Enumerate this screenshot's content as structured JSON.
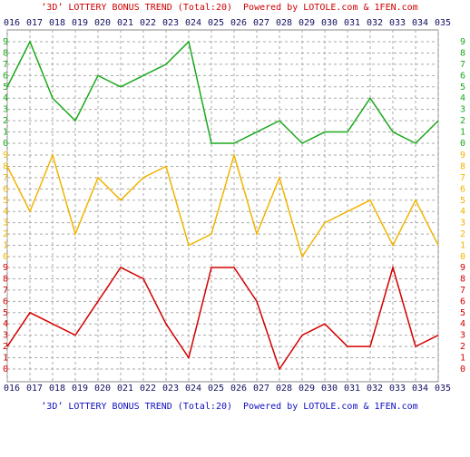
{
  "chart_data": [
    {
      "type": "line",
      "title": "’3D’ LOTTERY BONUS TREND (Total:20)  Powered by LOTOLE.com & 1FEN.com",
      "categories": [
        "016",
        "017",
        "018",
        "019",
        "020",
        "021",
        "022",
        "023",
        "024",
        "025",
        "026",
        "027",
        "028",
        "029",
        "030",
        "031",
        "032",
        "033",
        "034",
        "035"
      ],
      "series": [
        {
          "color": "#1aa81a",
          "values": [
            5,
            9,
            4,
            2,
            6,
            5,
            6,
            7,
            9,
            0,
            0,
            1,
            2,
            0,
            1,
            1,
            4,
            1,
            0,
            2
          ]
        }
      ],
      "ylim": [
        0,
        9
      ],
      "yticks": [
        0,
        1,
        2,
        3,
        4,
        5,
        6,
        7,
        8,
        9
      ],
      "grid": true
    },
    {
      "type": "line",
      "series": [
        {
          "color": "#f0b400",
          "values": [
            8,
            4,
            9,
            2,
            7,
            5,
            7,
            8,
            1,
            2,
            9,
            2,
            7,
            0,
            3,
            4,
            5,
            1,
            5,
            1
          ]
        }
      ],
      "ylim": [
        0,
        9
      ],
      "yticks": [
        0,
        1,
        2,
        3,
        4,
        5,
        6,
        7,
        8,
        9
      ],
      "grid": true
    },
    {
      "type": "line",
      "footer": "’3D’ LOTTERY BONUS TREND (Total:20)  Powered by LOTOLE.com & 1FEN.com",
      "series": [
        {
          "color": "#d40000",
          "values": [
            2,
            5,
            4,
            3,
            6,
            9,
            8,
            4,
            1,
            9,
            9,
            6,
            0,
            3,
            4,
            2,
            2,
            9,
            2,
            3
          ]
        }
      ],
      "ylim": [
        0,
        9
      ],
      "yticks": [
        0,
        1,
        2,
        3,
        4,
        5,
        6,
        7,
        8,
        9
      ],
      "grid": true
    }
  ]
}
